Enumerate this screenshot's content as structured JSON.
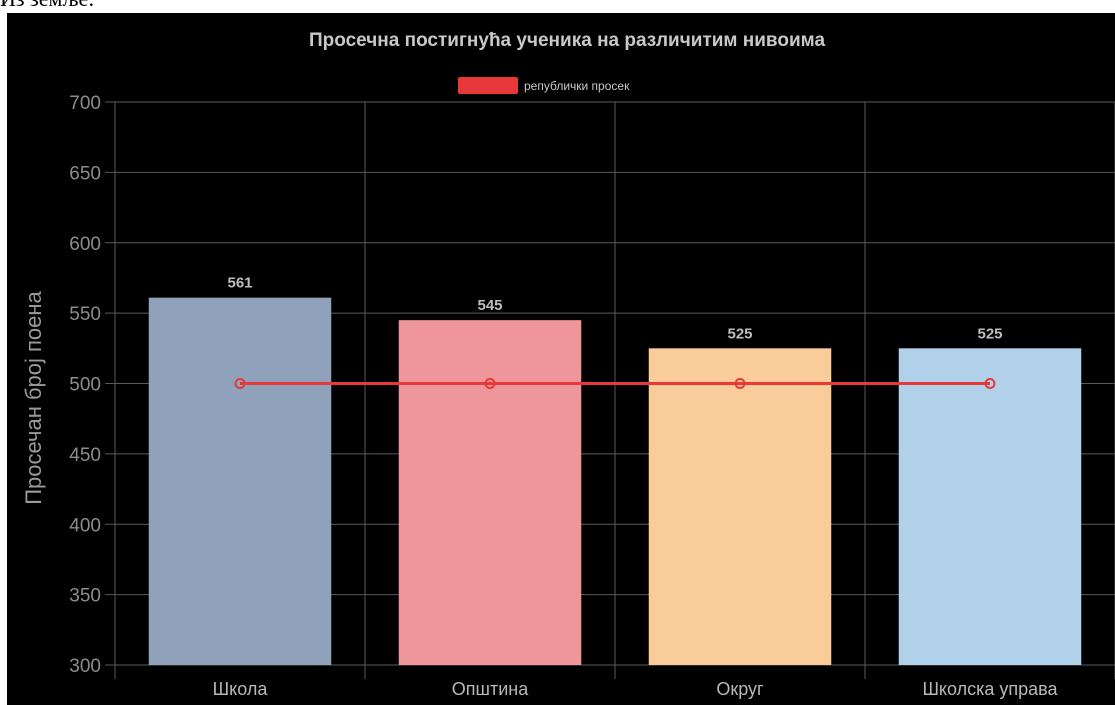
{
  "page": {
    "caption": "Из земље:"
  },
  "chart_data": {
    "type": "bar",
    "title": "Просечна постигнућа ученика на различитим нивоима",
    "xlabel": "",
    "ylabel": "Просечан број поена",
    "categories": [
      "Школа",
      "Општина",
      "Округ",
      "Школска управа"
    ],
    "values": [
      561,
      545,
      525,
      525
    ],
    "value_labels": [
      "561",
      "545",
      "525",
      "525"
    ],
    "bar_colors": [
      "#8fa1bb",
      "#ef959c",
      "#f9cc9a",
      "#b1d0ea"
    ],
    "ylim": [
      300,
      700
    ],
    "yticks": [
      300,
      350,
      400,
      450,
      500,
      550,
      600,
      650,
      700
    ],
    "ytick_labels": [
      "300",
      "350",
      "400",
      "450",
      "500",
      "550",
      "600",
      "650",
      "700"
    ],
    "grid": true,
    "legend_position": "top-center",
    "line_series": [
      {
        "name": "републички просек",
        "values": [
          500,
          500,
          500,
          500
        ],
        "color": "#e8383a"
      }
    ]
  }
}
